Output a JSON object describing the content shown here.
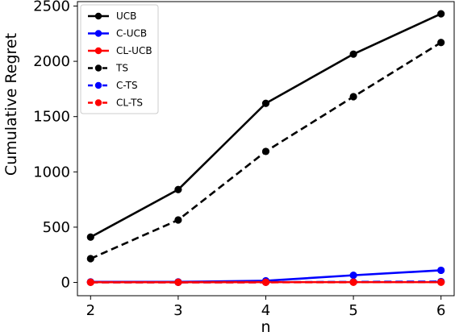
{
  "chart_data": {
    "type": "line",
    "xlabel": "n",
    "ylabel": "Cumulative Regret",
    "x": [
      2,
      3,
      4,
      5,
      6
    ],
    "xticks": [
      2,
      3,
      4,
      5,
      6
    ],
    "yticks": [
      0,
      500,
      1000,
      1500,
      2000,
      2500
    ],
    "xlim": [
      1.85,
      6.15
    ],
    "ylim": [
      -120,
      2540
    ],
    "grid": false,
    "legend_position": "top-left",
    "series": [
      {
        "name": "UCB",
        "color": "#000000",
        "linestyle": "solid",
        "values": [
          410,
          840,
          1620,
          2065,
          2430
        ]
      },
      {
        "name": "C-UCB",
        "color": "#0000ff",
        "linestyle": "solid",
        "values": [
          5,
          5,
          15,
          65,
          110
        ]
      },
      {
        "name": "CL-UCB",
        "color": "#ff0000",
        "linestyle": "solid",
        "values": [
          3,
          2,
          3,
          3,
          3
        ]
      },
      {
        "name": "TS",
        "color": "#000000",
        "linestyle": "dashed",
        "values": [
          215,
          565,
          1185,
          1680,
          2170
        ]
      },
      {
        "name": "C-TS",
        "color": "#0000ff",
        "linestyle": "dashed",
        "values": [
          2,
          1,
          2,
          5,
          8
        ]
      },
      {
        "name": "CL-TS",
        "color": "#ff0000",
        "linestyle": "dashed",
        "values": [
          1,
          1,
          1,
          2,
          2
        ]
      }
    ]
  }
}
